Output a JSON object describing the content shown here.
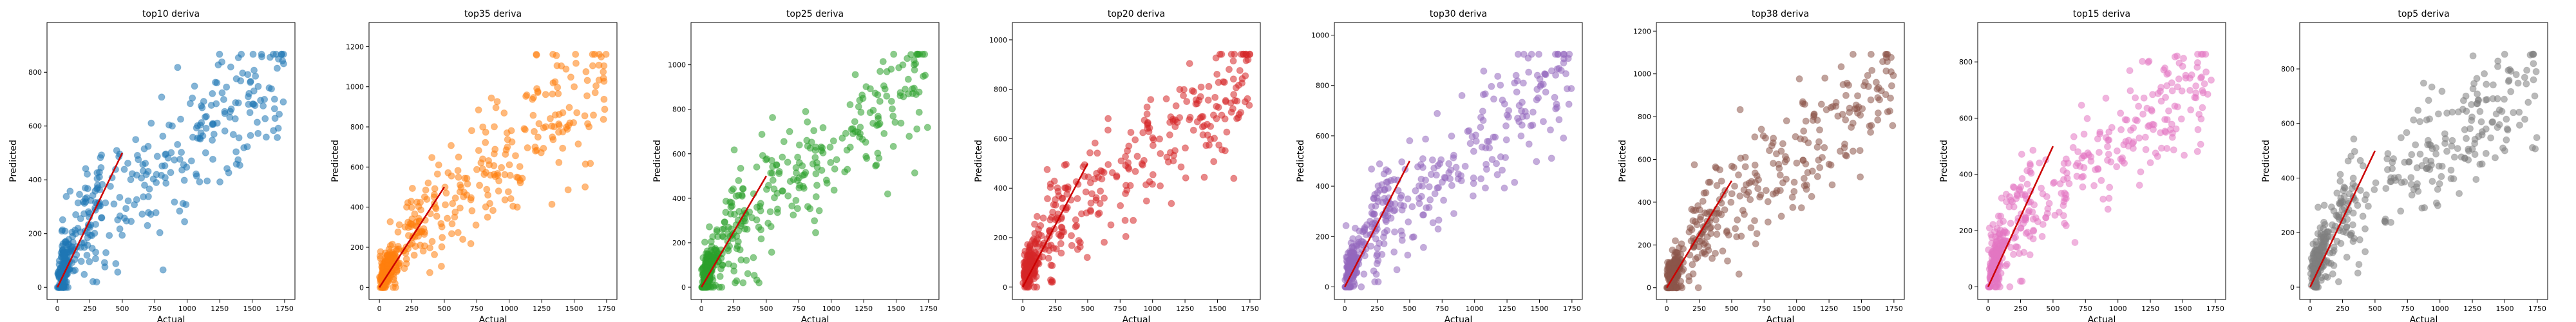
{
  "chart_data": [
    {
      "type": "scatter",
      "title": "top10 deriva",
      "xlabel": "Actual",
      "ylabel": "Predicted",
      "color": "#1f77b4",
      "xlim": [
        -80,
        1830
      ],
      "ylim": [
        -45,
        985
      ],
      "xticks": [
        0,
        250,
        500,
        750,
        1000,
        1250,
        1500,
        1750
      ],
      "yticks": [
        0,
        200,
        400,
        600,
        800
      ],
      "reference_line": {
        "color": "#cc0000",
        "x": [
          0,
          500
        ],
        "y": [
          0,
          500
        ]
      },
      "seed": 11,
      "points_summary": "dense cluster near origin, broad spread rising to ~900 at x~1700"
    },
    {
      "type": "scatter",
      "title": "top35 deriva",
      "xlabel": "Actual",
      "ylabel": "Predicted",
      "color": "#ff7f0e",
      "xlim": [
        -80,
        1830
      ],
      "ylim": [
        -60,
        1320
      ],
      "xticks": [
        0,
        250,
        500,
        750,
        1000,
        1250,
        1500,
        1750
      ],
      "yticks": [
        0,
        200,
        400,
        600,
        800,
        1000,
        1200
      ],
      "reference_line": {
        "color": "#cc0000",
        "x": [
          0,
          500
        ],
        "y": [
          0,
          500
        ]
      },
      "seed": 35
    },
    {
      "type": "scatter",
      "title": "top25 deriva",
      "xlabel": "Actual",
      "ylabel": "Predicted",
      "color": "#2ca02c",
      "xlim": [
        -80,
        1830
      ],
      "ylim": [
        -55,
        1190
      ],
      "xticks": [
        0,
        250,
        500,
        750,
        1000,
        1250,
        1500,
        1750
      ],
      "yticks": [
        0,
        200,
        400,
        600,
        800,
        1000
      ],
      "reference_line": {
        "color": "#cc0000",
        "x": [
          0,
          500
        ],
        "y": [
          0,
          500
        ]
      },
      "seed": 25
    },
    {
      "type": "scatter",
      "title": "top20 deriva",
      "xlabel": "Actual",
      "ylabel": "Predicted",
      "color": "#d62728",
      "xlim": [
        -80,
        1830
      ],
      "ylim": [
        -50,
        1070
      ],
      "xticks": [
        0,
        250,
        500,
        750,
        1000,
        1250,
        1500,
        1750
      ],
      "yticks": [
        0,
        200,
        400,
        600,
        800,
        1000
      ],
      "reference_line": {
        "color": "#cc0000",
        "x": [
          0,
          500
        ],
        "y": [
          0,
          500
        ]
      },
      "seed": 20
    },
    {
      "type": "scatter",
      "title": "top30 deriva",
      "xlabel": "Actual",
      "ylabel": "Predicted",
      "color": "#9467bd",
      "xlim": [
        -80,
        1830
      ],
      "ylim": [
        -50,
        1050
      ],
      "xticks": [
        0,
        250,
        500,
        750,
        1000,
        1250,
        1500,
        1750
      ],
      "yticks": [
        0,
        200,
        400,
        600,
        800,
        1000
      ],
      "reference_line": {
        "color": "#cc0000",
        "x": [
          0,
          500
        ],
        "y": [
          0,
          500
        ]
      },
      "seed": 30
    },
    {
      "type": "scatter",
      "title": "top38 deriva",
      "xlabel": "Actual",
      "ylabel": "Predicted",
      "color": "#8c564b",
      "xlim": [
        -80,
        1830
      ],
      "ylim": [
        -55,
        1240
      ],
      "xticks": [
        0,
        250,
        500,
        750,
        1000,
        1250,
        1500,
        1750
      ],
      "yticks": [
        0,
        200,
        400,
        600,
        800,
        1000,
        1200
      ],
      "reference_line": {
        "color": "#cc0000",
        "x": [
          0,
          500
        ],
        "y": [
          0,
          500
        ]
      },
      "seed": 38
    },
    {
      "type": "scatter",
      "title": "top15 deriva",
      "xlabel": "Actual",
      "ylabel": "Predicted",
      "color": "#e377c2",
      "xlim": [
        -80,
        1830
      ],
      "ylim": [
        -45,
        940
      ],
      "xticks": [
        0,
        250,
        500,
        750,
        1000,
        1250,
        1500,
        1750
      ],
      "yticks": [
        0,
        200,
        400,
        600,
        800
      ],
      "reference_line": {
        "color": "#cc0000",
        "x": [
          0,
          500
        ],
        "y": [
          0,
          500
        ]
      },
      "seed": 15
    },
    {
      "type": "scatter",
      "title": "top5 deriva",
      "xlabel": "Actual",
      "ylabel": "Predicted",
      "color": "#7f7f7f",
      "xlim": [
        -80,
        1830
      ],
      "ylim": [
        -45,
        970
      ],
      "xticks": [
        0,
        250,
        500,
        750,
        1000,
        1250,
        1500,
        1750
      ],
      "yticks": [
        0,
        200,
        400,
        600,
        800
      ],
      "reference_line": {
        "color": "#cc0000",
        "x": [
          0,
          500
        ],
        "y": [
          0,
          500
        ]
      },
      "seed": 5
    }
  ]
}
